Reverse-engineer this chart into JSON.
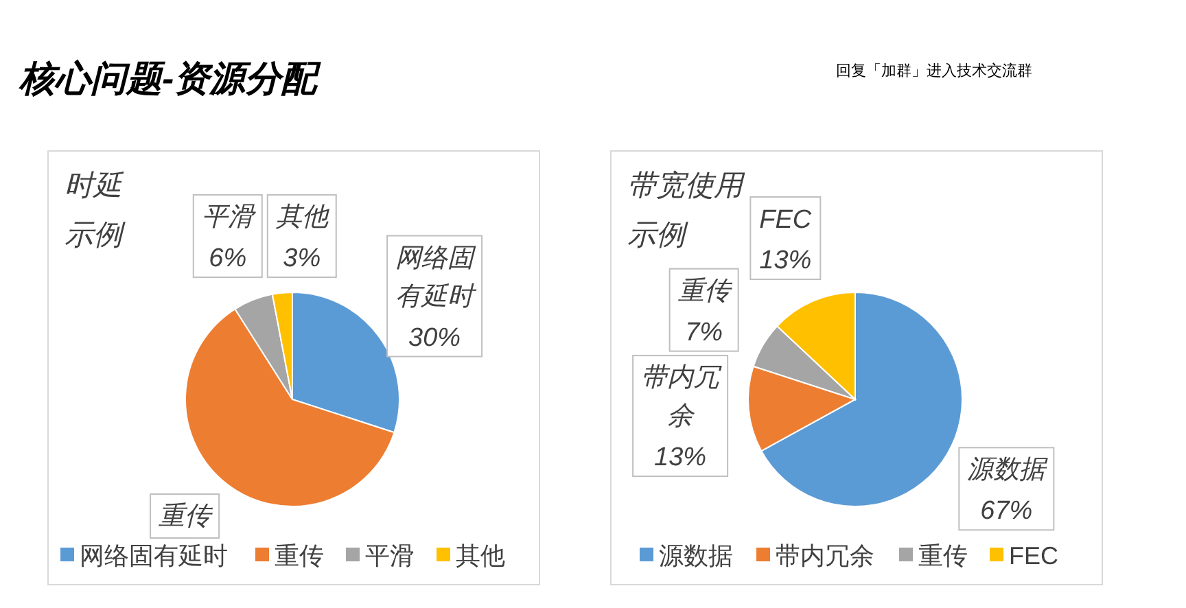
{
  "chart_data": [
    {
      "type": "pie",
      "title": "时延",
      "subtitle": "示例",
      "categories": [
        "网络固有延时",
        "重传",
        "平滑",
        "其他"
      ],
      "values": [
        30,
        61,
        6,
        3
      ],
      "value_labels": [
        "30%",
        null,
        "6%",
        "3%"
      ],
      "colors": [
        "#5b9bd5",
        "#ed7d31",
        "#a5a5a5",
        "#ffc000"
      ],
      "legend": "bottom",
      "annotations": [
        "核心问题-资源分配",
        "回复「加群」进入技术交流群"
      ]
    },
    {
      "type": "pie",
      "title": "带宽使用",
      "subtitle": "示例",
      "categories": [
        "源数据",
        "带内冗余",
        "重传",
        "FEC"
      ],
      "values": [
        67,
        13,
        7,
        13
      ],
      "value_labels": [
        "67%",
        "13%",
        "7%",
        "13%"
      ],
      "colors": [
        "#5b9bd5",
        "#ed7d31",
        "#a5a5a5",
        "#ffc000"
      ],
      "legend": "bottom"
    }
  ]
}
